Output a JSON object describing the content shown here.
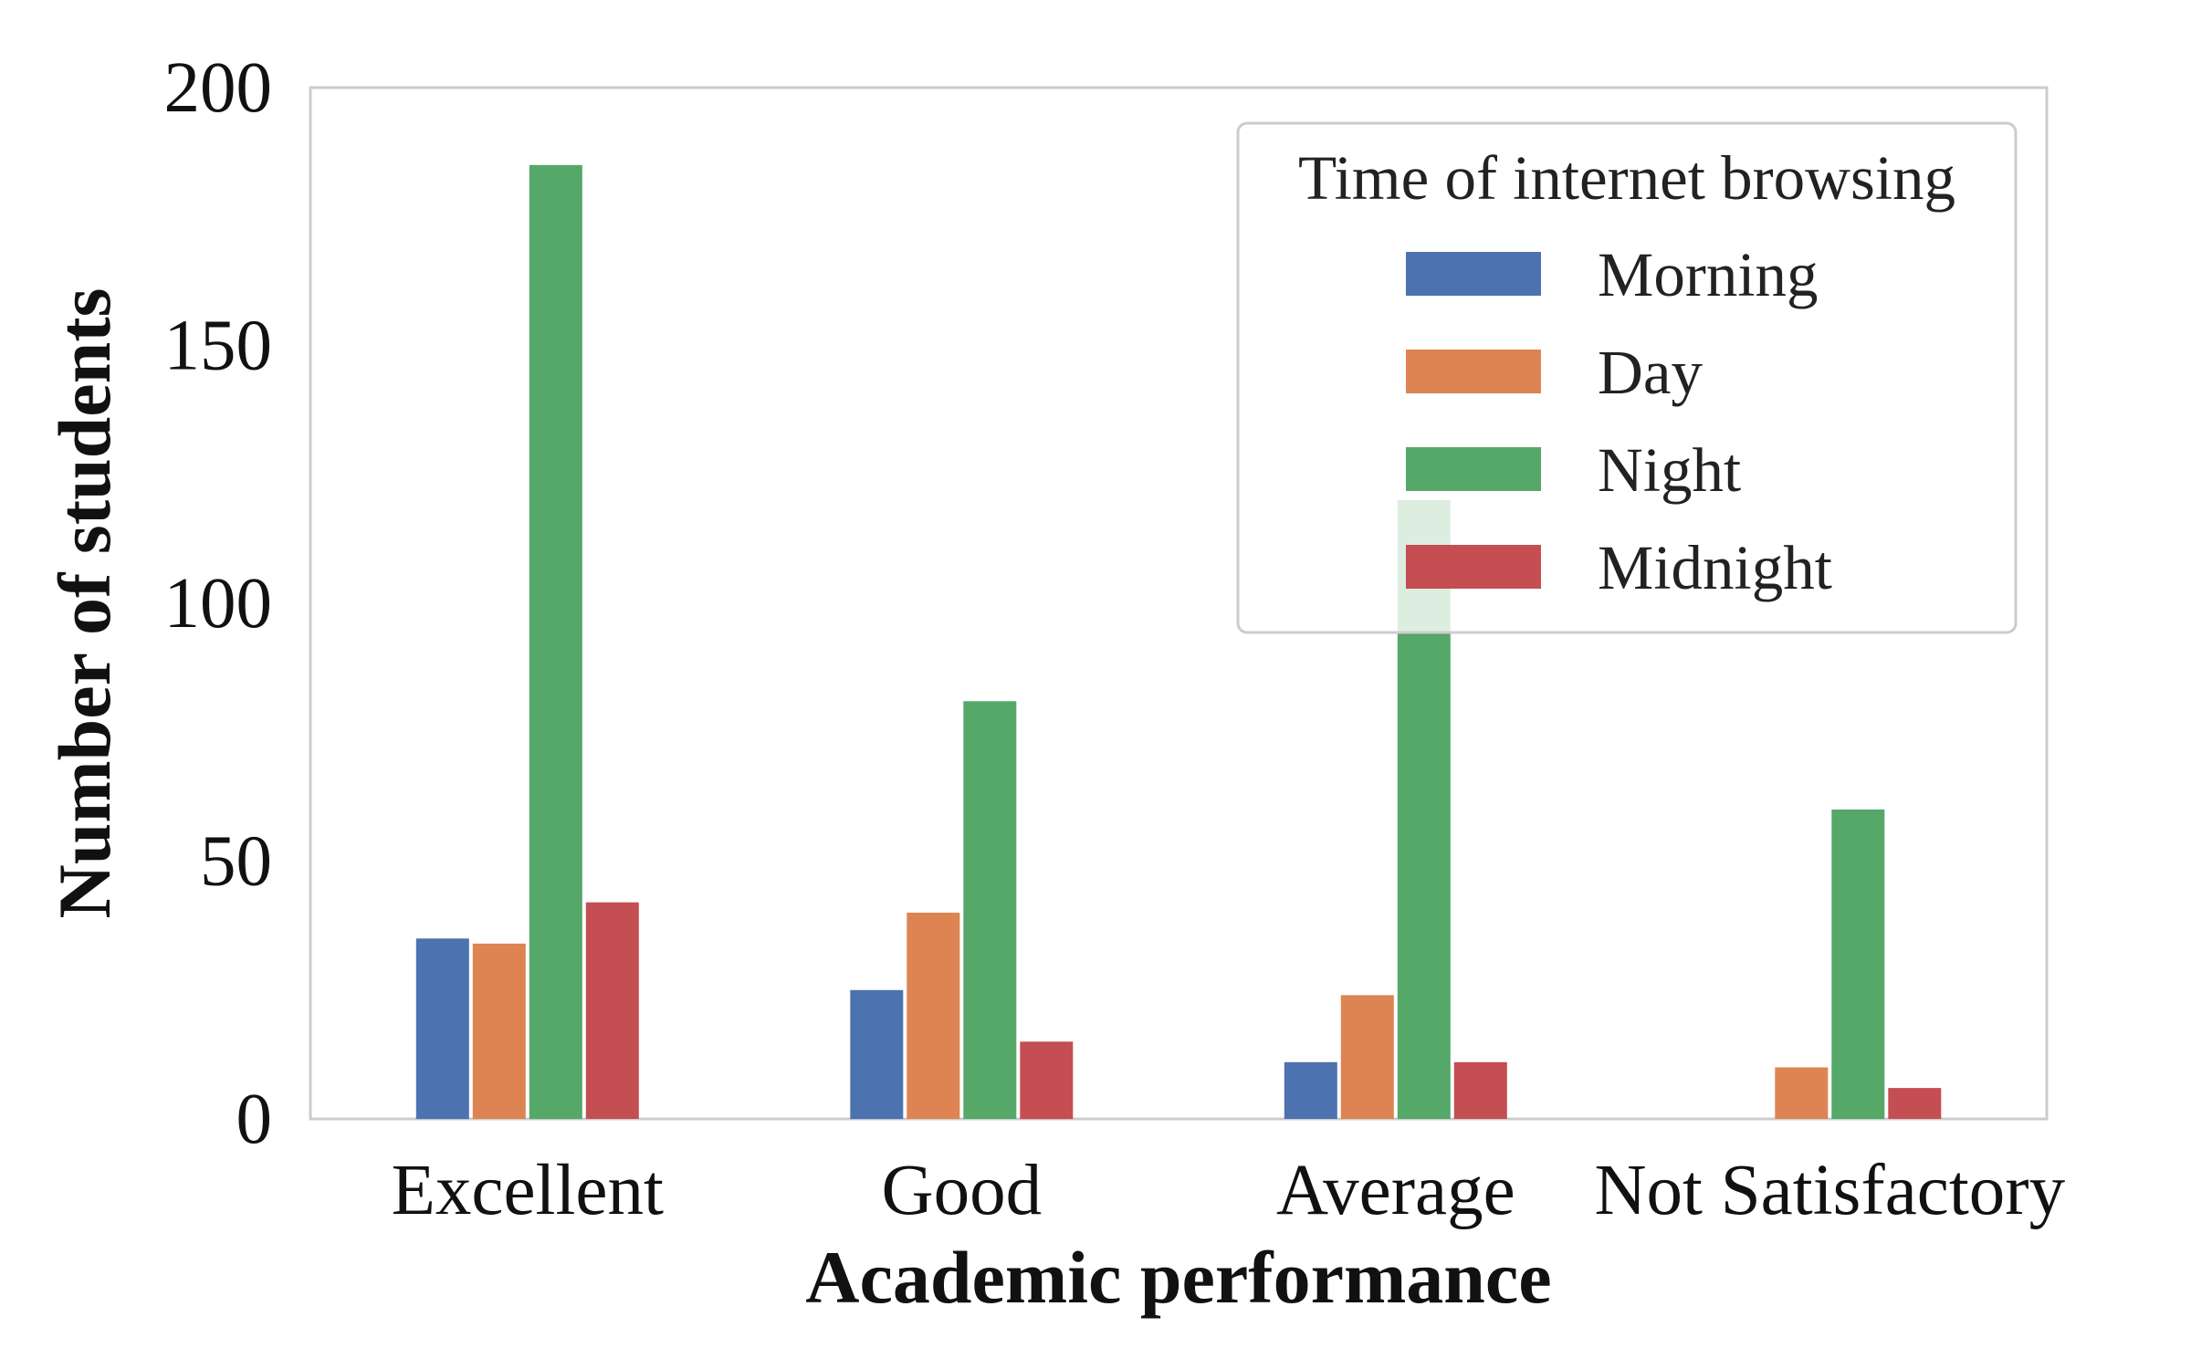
{
  "chart_data": {
    "type": "bar",
    "xlabel": "Academic performance",
    "ylabel": "Number of students",
    "categories": [
      "Excellent",
      "Good",
      "Average",
      "Not Satisfactory"
    ],
    "ylim": [
      0,
      200
    ],
    "yticks": [
      0,
      50,
      100,
      150,
      200
    ],
    "grid": false,
    "legend": {
      "title": "Time of internet browsing",
      "placement": "top-right"
    },
    "series": [
      {
        "name": "Morning",
        "color": "#4c72b0",
        "values": [
          35,
          25,
          11,
          0
        ]
      },
      {
        "name": "Day",
        "color": "#dd8452",
        "values": [
          34,
          40,
          24,
          10
        ]
      },
      {
        "name": "Night",
        "color": "#55a868",
        "values": [
          185,
          81,
          120,
          60
        ]
      },
      {
        "name": "Midnight",
        "color": "#c44e52",
        "values": [
          42,
          15,
          11,
          6
        ]
      }
    ]
  }
}
